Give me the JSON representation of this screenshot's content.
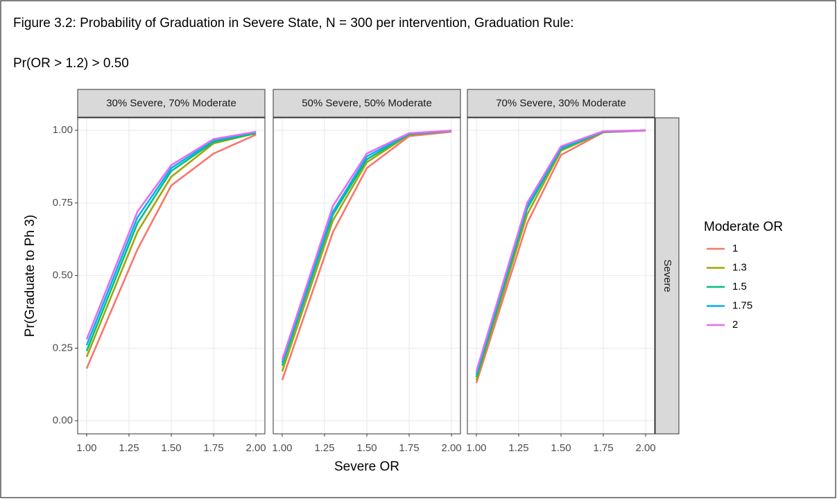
{
  "figure_title_lines": [
    "Figure 3.2: Probability of Graduation in Severe State, N = 300 per intervention, Graduation Rule:",
    "Pr(OR > 1.2) > 0.50"
  ],
  "chart_data": [
    {
      "type": "line",
      "title": "30% Severe, 70% Moderate",
      "y_label": "Pr(Graduate to Ph 3)",
      "x": [
        1,
        1.3,
        1.5,
        1.75,
        2
      ],
      "series": [
        {
          "name": "1",
          "color": "#F8766D",
          "values": [
            0.18,
            0.59,
            0.81,
            0.92,
            0.985
          ]
        },
        {
          "name": "1.3",
          "color": "#A3A500",
          "values": [
            0.22,
            0.65,
            0.84,
            0.955,
            0.99
          ]
        },
        {
          "name": "1.5",
          "color": "#00BF7D",
          "values": [
            0.24,
            0.68,
            0.86,
            0.96,
            0.99
          ]
        },
        {
          "name": "1.75",
          "color": "#00B0F6",
          "values": [
            0.26,
            0.7,
            0.87,
            0.965,
            0.995
          ]
        },
        {
          "name": "2",
          "color": "#E76BF3",
          "values": [
            0.28,
            0.72,
            0.88,
            0.97,
            0.995
          ]
        }
      ],
      "xlim": [
        0.947,
        2.053
      ],
      "ylim": [
        -0.045,
        1.043
      ],
      "xticks": [
        {
          "value": 1,
          "label": "1.00"
        },
        1.25,
        {
          "value": 1.5,
          "label": "1.50"
        },
        1.75,
        {
          "value": 2,
          "label": "2.00"
        }
      ],
      "yticks": [
        {
          "value": 0,
          "label": "0.00"
        },
        0.25,
        {
          "value": 0.5,
          "label": "0.50"
        },
        0.75,
        {
          "value": 1,
          "label": "1.00"
        }
      ],
      "grid": true
    },
    {
      "type": "line",
      "title": "50% Severe, 50% Moderate",
      "x_label": "Severe OR",
      "x": [
        1,
        1.3,
        1.5,
        1.75,
        2
      ],
      "series": [
        {
          "color": "#F8766D",
          "values": [
            0.14,
            0.65,
            0.87,
            0.98,
            0.995
          ]
        },
        {
          "color": "#A3A500",
          "values": [
            0.17,
            0.69,
            0.89,
            0.985,
            0.998
          ]
        },
        {
          "color": "#00BF7D",
          "values": [
            0.19,
            0.71,
            0.9,
            0.987,
            0.998
          ]
        },
        {
          "color": "#00B0F6",
          "values": [
            0.2,
            0.72,
            0.91,
            0.988,
            0.999
          ]
        },
        {
          "color": "#E76BF3",
          "values": [
            0.21,
            0.74,
            0.92,
            0.99,
            0.999
          ]
        }
      ],
      "xlim": [
        0.947,
        2.053
      ],
      "ylim": [
        -0.045,
        1.043
      ],
      "xticks": [
        {
          "value": 1,
          "label": "1.00"
        },
        1.25,
        {
          "value": 1.5,
          "label": "1.50"
        },
        1.75,
        {
          "value": 2,
          "label": "2.00"
        }
      ],
      "yticks": [
        0,
        0.25,
        0.5,
        0.75,
        1
      ],
      "grid": true
    },
    {
      "type": "line",
      "title": "70% Severe, 30% Moderate",
      "row_label": "Severe",
      "legend_title": "Moderate OR",
      "x": [
        1,
        1.3,
        1.5,
        1.75,
        2
      ],
      "series": [
        {
          "color": "#F8766D",
          "values": [
            0.13,
            0.68,
            0.915,
            0.993,
            0.999
          ]
        },
        {
          "color": "#A3A500",
          "values": [
            0.14,
            0.71,
            0.93,
            0.994,
            1
          ]
        },
        {
          "color": "#00BF7D",
          "values": [
            0.15,
            0.73,
            0.935,
            0.995,
            1
          ]
        },
        {
          "color": "#00B0F6",
          "values": [
            0.16,
            0.74,
            0.94,
            0.996,
            1
          ]
        },
        {
          "color": "#E76BF3",
          "values": [
            0.17,
            0.75,
            0.945,
            0.997,
            1
          ]
        }
      ],
      "xlim": [
        0.947,
        2.053
      ],
      "ylim": [
        -0.045,
        1.043
      ],
      "xticks": [
        {
          "value": 1,
          "label": "1.00"
        },
        1.25,
        {
          "value": 1.5,
          "label": "1.50"
        },
        1.75,
        {
          "value": 2,
          "label": "2.00"
        }
      ],
      "yticks": [
        0,
        0.25,
        0.5,
        0.75,
        1
      ],
      "grid": true
    }
  ]
}
